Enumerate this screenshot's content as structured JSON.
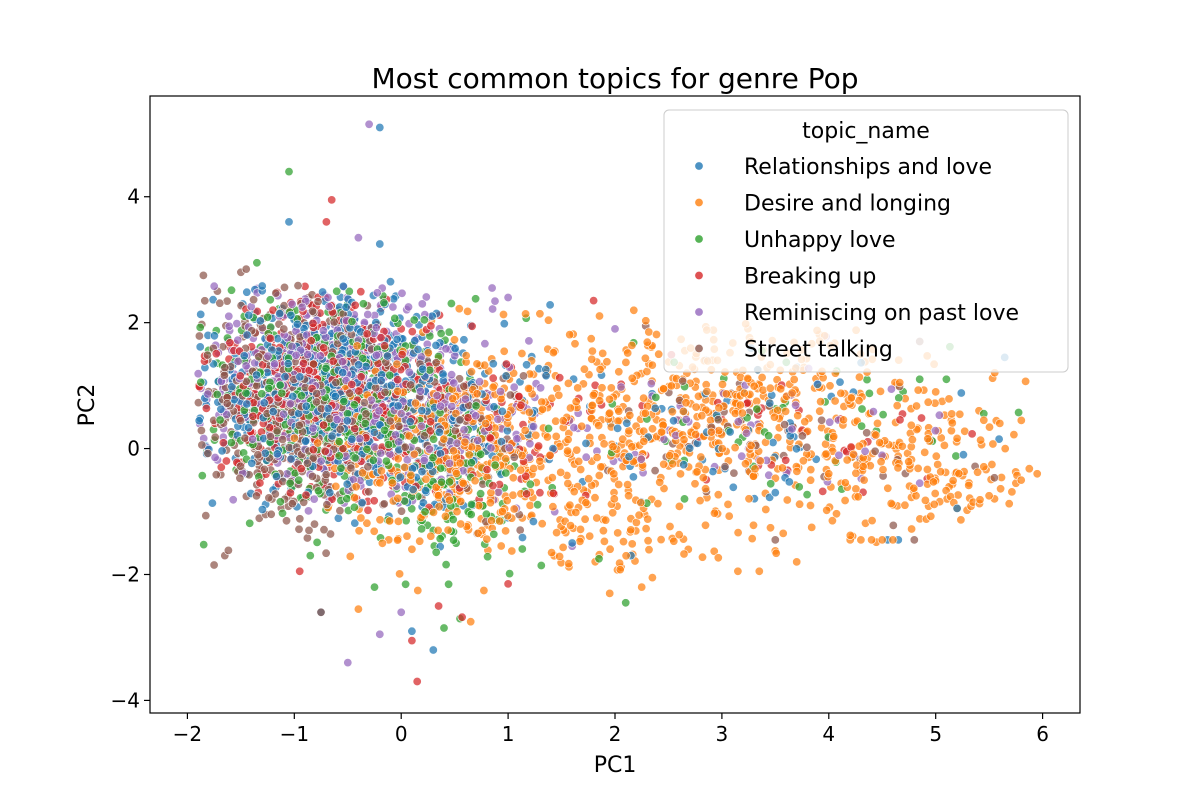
{
  "chart_data": {
    "type": "scatter",
    "title": "Most common topics for genre Pop",
    "xlabel": "PC1",
    "ylabel": "PC2",
    "xlim": [
      -2.35,
      6.35
    ],
    "ylim": [
      -4.2,
      5.6
    ],
    "x_ticks": [
      -2,
      -1,
      0,
      1,
      2,
      3,
      4,
      5,
      6
    ],
    "x_tick_labels": [
      "−2",
      "−1",
      "0",
      "1",
      "2",
      "3",
      "4",
      "5",
      "6"
    ],
    "y_ticks": [
      -4,
      -2,
      0,
      2,
      4
    ],
    "y_tick_labels": [
      "−4",
      "−2",
      "0",
      "2",
      "4"
    ],
    "grid": false,
    "legend": {
      "title": "topic_name",
      "placement": "upper right"
    },
    "series": [
      {
        "name": "Relationships and love",
        "color": "#1f77b4",
        "clusters": [
          {
            "cx": -0.7,
            "cy": 0.9,
            "sx": 0.55,
            "sy": 0.75,
            "n": 520
          },
          {
            "cx": 0.3,
            "cy": 0.3,
            "sx": 0.5,
            "sy": 0.8,
            "n": 140
          },
          {
            "cx": 3.0,
            "cy": 0.4,
            "sx": 1.2,
            "sy": 0.6,
            "n": 70
          }
        ],
        "points": [
          {
            "x": -0.2,
            "y": 5.1
          },
          {
            "x": -1.05,
            "y": 3.6
          },
          {
            "x": -0.2,
            "y": 3.25
          },
          {
            "x": -0.1,
            "y": 2.65
          },
          {
            "x": 0.3,
            "y": -3.2
          },
          {
            "x": 0.1,
            "y": -2.9
          },
          {
            "x": 2.15,
            "y": -1.7
          },
          {
            "x": 1.0,
            "y": -1.1
          },
          {
            "x": 3.5,
            "y": -0.7
          },
          {
            "x": 4.65,
            "y": -1.45
          },
          {
            "x": 4.55,
            "y": -1.45
          },
          {
            "x": 5.2,
            "y": -0.95
          },
          {
            "x": -0.75,
            "y": -2.6
          },
          {
            "x": -1.85,
            "y": 1.05
          },
          {
            "x": 1.6,
            "y": -1.5
          }
        ]
      },
      {
        "name": "Desire and longing",
        "color": "#ff7f0e",
        "clusters": [
          {
            "cx": 0.4,
            "cy": 0.0,
            "sx": 0.55,
            "sy": 0.85,
            "n": 360
          },
          {
            "cx": 2.8,
            "cy": 0.5,
            "sx": 1.1,
            "sy": 0.7,
            "n": 620
          },
          {
            "cx": 4.9,
            "cy": -0.4,
            "sx": 0.6,
            "sy": 0.5,
            "n": 130
          },
          {
            "cx": 1.9,
            "cy": -1.2,
            "sx": 0.6,
            "sy": 0.4,
            "n": 110
          }
        ],
        "points": [
          {
            "x": 5.95,
            "y": -0.4
          },
          {
            "x": 5.8,
            "y": -0.5
          },
          {
            "x": 5.75,
            "y": -0.55
          },
          {
            "x": 5.55,
            "y": -0.8
          },
          {
            "x": 5.5,
            "y": -0.75
          },
          {
            "x": 5.35,
            "y": -0.85
          },
          {
            "x": 5.2,
            "y": -0.95
          },
          {
            "x": 5.0,
            "y": 0.9
          },
          {
            "x": 5.15,
            "y": 0.55
          },
          {
            "x": 5.6,
            "y": 0.4
          },
          {
            "x": 5.65,
            "y": 0.0
          },
          {
            "x": 5.45,
            "y": 0.45
          },
          {
            "x": 4.3,
            "y": -1.45
          },
          {
            "x": 4.4,
            "y": -1.45
          },
          {
            "x": 4.5,
            "y": -1.45
          },
          {
            "x": 4.6,
            "y": -1.45
          },
          {
            "x": 4.2,
            "y": -1.45
          },
          {
            "x": 3.15,
            "y": -1.95
          },
          {
            "x": 3.35,
            "y": -1.95
          },
          {
            "x": 3.7,
            "y": -1.8
          },
          {
            "x": 2.35,
            "y": -2.05
          },
          {
            "x": 2.25,
            "y": -2.2
          },
          {
            "x": 1.95,
            "y": -2.3
          },
          {
            "x": 0.65,
            "y": -2.75
          },
          {
            "x": -0.4,
            "y": -2.55
          },
          {
            "x": 0.1,
            "y": -1.6
          }
        ]
      },
      {
        "name": "Unhappy love",
        "color": "#2ca02c",
        "clusters": [
          {
            "cx": -0.6,
            "cy": 0.7,
            "sx": 0.55,
            "sy": 0.8,
            "n": 440
          },
          {
            "cx": 0.5,
            "cy": -0.5,
            "sx": 0.35,
            "sy": 0.6,
            "n": 120
          },
          {
            "cx": 3.2,
            "cy": 0.4,
            "sx": 1.0,
            "sy": 0.5,
            "n": 50
          }
        ],
        "points": [
          {
            "x": -1.05,
            "y": 4.4
          },
          {
            "x": -1.35,
            "y": 2.95
          },
          {
            "x": 0.4,
            "y": -2.85
          },
          {
            "x": 0.55,
            "y": -2.7
          },
          {
            "x": 2.1,
            "y": -2.45
          },
          {
            "x": 1.85,
            "y": -1.75
          },
          {
            "x": 4.85,
            "y": 1.1
          },
          {
            "x": 5.1,
            "y": 1.1
          },
          {
            "x": -0.25,
            "y": -2.2
          },
          {
            "x": -0.85,
            "y": -1.7
          },
          {
            "x": 2.65,
            "y": -0.8
          }
        ]
      },
      {
        "name": "Breaking up",
        "color": "#d62728",
        "clusters": [
          {
            "cx": -0.7,
            "cy": 0.9,
            "sx": 0.55,
            "sy": 0.75,
            "n": 420
          },
          {
            "cx": 0.8,
            "cy": 0.2,
            "sx": 0.4,
            "sy": 0.6,
            "n": 70
          },
          {
            "cx": 3.3,
            "cy": 0.3,
            "sx": 1.0,
            "sy": 0.5,
            "n": 40
          }
        ],
        "points": [
          {
            "x": -0.65,
            "y": 3.95
          },
          {
            "x": -0.7,
            "y": 3.6
          },
          {
            "x": 0.15,
            "y": -3.7
          },
          {
            "x": 0.1,
            "y": -3.05
          },
          {
            "x": 1.8,
            "y": 2.35
          },
          {
            "x": 0.35,
            "y": -2.5
          },
          {
            "x": -0.95,
            "y": -1.95
          },
          {
            "x": 1.0,
            "y": -2.15
          },
          {
            "x": 0.0,
            "y": 1.9
          }
        ]
      },
      {
        "name": "Reminiscing on past love",
        "color": "#9467bd",
        "clusters": [
          {
            "cx": -0.6,
            "cy": 1.0,
            "sx": 0.6,
            "sy": 0.75,
            "n": 480
          },
          {
            "cx": 0.5,
            "cy": 0.2,
            "sx": 0.5,
            "sy": 0.6,
            "n": 110
          },
          {
            "cx": 3.1,
            "cy": 0.4,
            "sx": 1.1,
            "sy": 0.6,
            "n": 60
          }
        ],
        "points": [
          {
            "x": -0.3,
            "y": 5.15
          },
          {
            "x": -0.4,
            "y": 3.35
          },
          {
            "x": -0.5,
            "y": -3.4
          },
          {
            "x": -0.2,
            "y": -2.95
          },
          {
            "x": 0.0,
            "y": -2.6
          },
          {
            "x": 0.85,
            "y": 2.55
          },
          {
            "x": 1.0,
            "y": 2.4
          },
          {
            "x": 2.0,
            "y": 1.9
          },
          {
            "x": 4.85,
            "y": -0.55
          },
          {
            "x": 1.6,
            "y": -1.55
          }
        ]
      },
      {
        "name": "Street talking",
        "color": "#8c564b",
        "clusters": [
          {
            "cx": -1.0,
            "cy": 0.6,
            "sx": 0.5,
            "sy": 0.9,
            "n": 420
          },
          {
            "cx": 0.3,
            "cy": 0.4,
            "sx": 0.45,
            "sy": 0.7,
            "n": 80
          },
          {
            "cx": 3.3,
            "cy": 0.2,
            "sx": 1.0,
            "sy": 0.55,
            "n": 50
          }
        ],
        "points": [
          {
            "x": -1.85,
            "y": 2.75
          },
          {
            "x": -1.45,
            "y": 2.85
          },
          {
            "x": -1.5,
            "y": 2.8
          },
          {
            "x": -1.75,
            "y": -1.85
          },
          {
            "x": -1.65,
            "y": -1.7
          },
          {
            "x": -0.75,
            "y": -2.6
          },
          {
            "x": 4.8,
            "y": -1.45
          },
          {
            "x": 4.85,
            "y": 1.7
          },
          {
            "x": 3.5,
            "y": -1.45
          }
        ]
      }
    ]
  }
}
